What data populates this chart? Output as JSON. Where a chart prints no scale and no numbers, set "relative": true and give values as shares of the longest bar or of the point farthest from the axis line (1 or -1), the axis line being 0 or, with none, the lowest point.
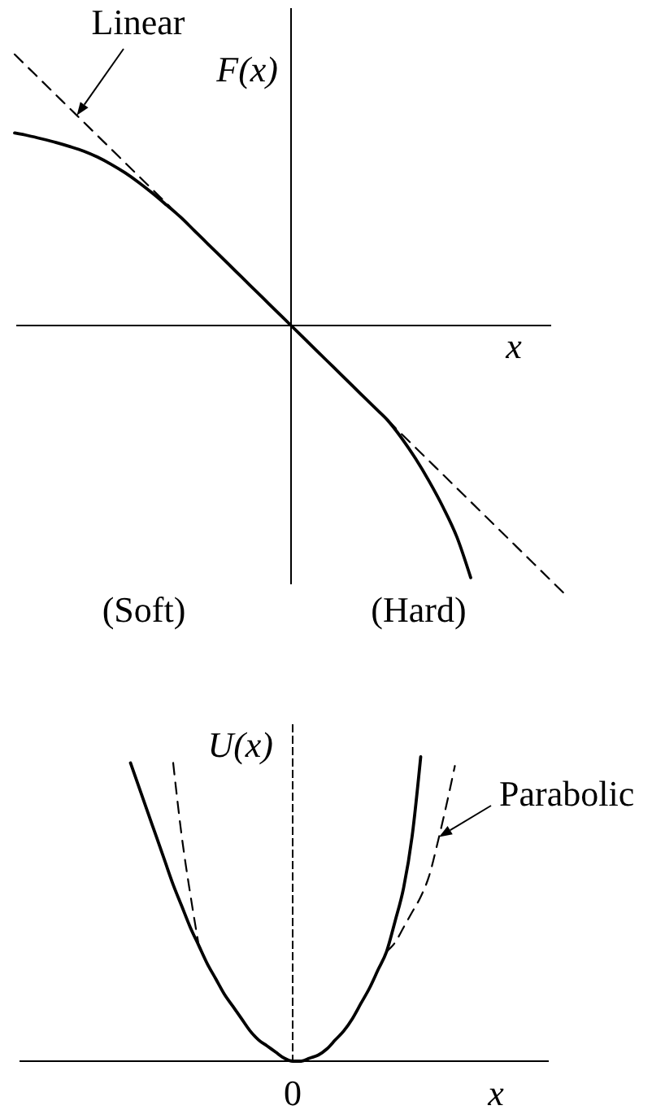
{
  "chart_data": [
    {
      "type": "line",
      "xlabel": "x",
      "ylabel": "F(x)",
      "relative": true,
      "categories": [
        null,
        null,
        null,
        null,
        null,
        null,
        null,
        null,
        null,
        null,
        null,
        null,
        null,
        null,
        null,
        null,
        null,
        null,
        null,
        null,
        null,
        null,
        null,
        null,
        null,
        null,
        null,
        null,
        null,
        null,
        null,
        null,
        null,
        null,
        null,
        null,
        null,
        null,
        null,
        null,
        null
      ],
      "annotations": [
        "(Soft)",
        "(Hard)"
      ],
      "series": [
        {
          "color": "#000000",
          "line_style": "solid",
          "values": [
            0.71,
            0.7,
            0.688,
            0.675,
            0.66,
            0.643,
            0.621,
            0.594,
            0.563,
            0.527,
            0.487,
            0.444,
            0.4,
            0.35,
            0.3,
            0.25,
            0.2,
            0.15,
            0.1,
            0.05,
            0,
            -0.05,
            -0.1,
            -0.15,
            -0.2,
            -0.25,
            -0.3,
            -0.35,
            -0.415,
            -0.49,
            -0.575,
            -0.67,
            -0.78,
            -0.93,
            null,
            null,
            null,
            null,
            null,
            null,
            null
          ]
        },
        {
          "name": "Linear",
          "color": "#000000",
          "line_style": "dashed",
          "values": [
            1,
            0.95,
            0.9,
            0.85,
            0.8,
            0.75,
            0.7,
            0.65,
            0.6,
            0.55,
            0.5,
            0.45,
            0.4,
            null,
            null,
            null,
            null,
            null,
            null,
            null,
            null,
            null,
            null,
            null,
            null,
            null,
            null,
            -0.35,
            -0.4,
            -0.45,
            -0.5,
            -0.55,
            -0.6,
            -0.65,
            -0.7,
            -0.75,
            -0.8,
            -0.85,
            -0.9,
            -0.95,
            -1
          ]
        }
      ]
    },
    {
      "type": "line",
      "xlabel": "x",
      "ylabel": "U(x)",
      "relative": true,
      "categories": [
        null,
        null,
        null,
        null,
        null,
        null,
        null,
        null,
        null,
        null,
        null,
        null,
        null,
        null,
        null,
        null,
        null,
        null,
        null,
        null,
        null,
        null,
        null,
        null,
        null,
        null,
        null,
        null,
        null,
        null,
        null,
        null,
        null,
        null,
        null,
        null,
        null,
        null,
        null,
        null,
        null,
        null,
        null,
        null,
        null,
        null,
        null,
        null,
        null,
        null,
        null,
        null,
        null,
        null,
        null,
        null,
        null,
        null,
        null,
        null,
        null,
        null,
        null
      ],
      "annotations": [
        "0"
      ],
      "series": [
        {
          "color": "#000000",
          "line_style": "solid",
          "values": [
            null,
            null,
            null,
            null,
            null,
            null,
            null,
            null,
            null,
            null,
            null,
            null,
            null,
            0.98,
            0.9,
            0.82,
            0.74,
            0.66,
            0.58,
            0.51,
            0.44,
            0.38,
            0.32,
            0.27,
            0.22,
            0.18,
            0.14,
            0.1,
            0.07,
            0.05,
            0.03,
            0.01,
            0,
            0,
            0.01,
            0.02,
            0.04,
            0.07,
            0.1,
            0.14,
            0.19,
            0.24,
            0.3,
            0.36,
            0.46,
            0.57,
            0.74,
            1,
            null,
            null,
            null,
            null,
            null,
            null,
            null,
            null,
            null,
            null,
            null,
            null,
            null,
            null,
            null
          ]
        },
        {
          "name": "Parabolic",
          "color": "#000000",
          "line_style": "dashed",
          "values": [
            null,
            null,
            null,
            null,
            null,
            null,
            null,
            null,
            null,
            null,
            null,
            null,
            null,
            null,
            null,
            null,
            null,
            null,
            0.98,
            0.74,
            0.55,
            0.38,
            null,
            null,
            null,
            null,
            null,
            null,
            null,
            null,
            null,
            null,
            null,
            null,
            null,
            null,
            null,
            null,
            null,
            null,
            null,
            null,
            null,
            0.36,
            0.39,
            0.44,
            0.49,
            0.54,
            0.61,
            0.72,
            0.84,
            0.97,
            null,
            null,
            null,
            null,
            null,
            null,
            null,
            null,
            null,
            null,
            null
          ]
        }
      ]
    }
  ]
}
